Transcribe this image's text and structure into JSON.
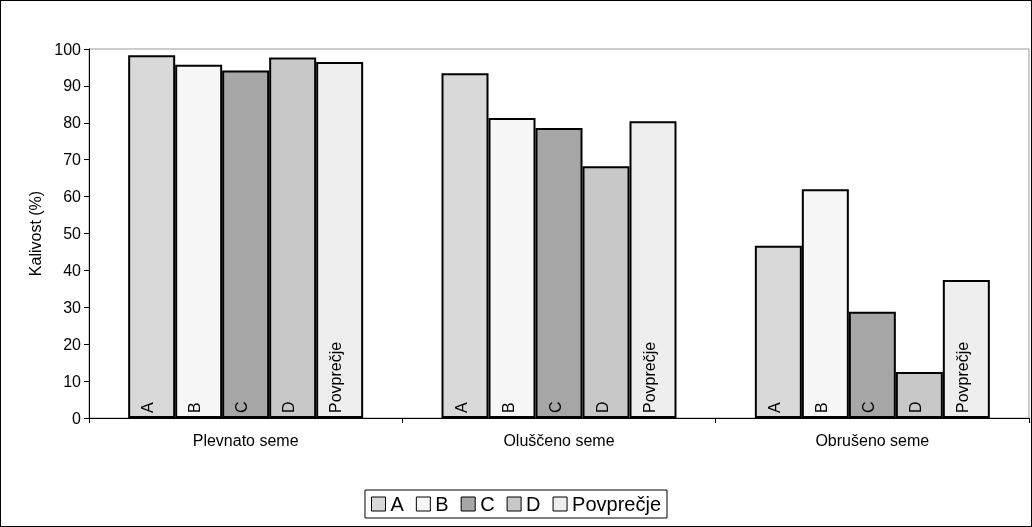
{
  "chart_data": {
    "type": "bar",
    "ylabel": "Kalivost (%)",
    "categories": [
      "Plevnato seme",
      "Oluščeno seme",
      "Obrušeno seme"
    ],
    "series": [
      {
        "name": "A",
        "color": "#d9d9d9",
        "values": [
          98.3,
          93.4,
          46.7
        ]
      },
      {
        "name": "B",
        "color": "#f7f7f7",
        "values": [
          95.7,
          81.3,
          62
        ]
      },
      {
        "name": "C",
        "color": "#a6a6a6",
        "values": [
          94.2,
          78.6,
          28.8
        ]
      },
      {
        "name": "D",
        "color": "#c8c8c8",
        "values": [
          97.7,
          68.2,
          12.5
        ]
      },
      {
        "name": "Povprečje",
        "color": "#eeeeee",
        "values": [
          96.5,
          80.4,
          37.4
        ]
      }
    ],
    "ylim": [
      0,
      100
    ],
    "yticks": [
      0,
      10,
      20,
      30,
      40,
      50,
      60,
      70,
      80,
      90,
      100
    ],
    "grid": false,
    "legend": "bottom"
  }
}
